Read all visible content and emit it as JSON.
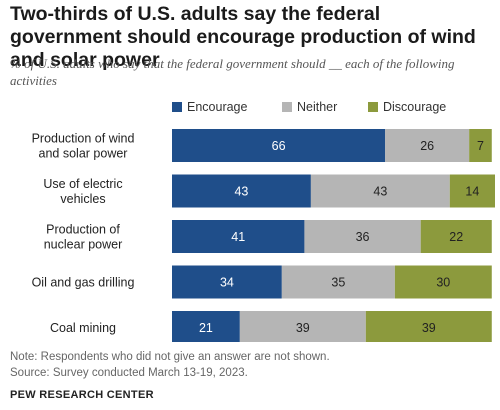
{
  "title": "Two-thirds of U.S. adults say the federal government should encourage production of wind and solar power",
  "subtitle": "% of U.S. adults who say that the federal government should __ each of the following activities",
  "note": "Note: Respondents who did not give an answer are not shown.",
  "source": "Source: Survey conducted March 13-19, 2023.",
  "brand": "PEW RESEARCH CENTER",
  "chart_data": {
    "type": "bar",
    "orientation": "horizontal",
    "stacked": true,
    "categories": [
      [
        "Production of wind",
        "and solar power"
      ],
      [
        "Use of electric",
        "vehicles"
      ],
      [
        "Production of",
        "nuclear power"
      ],
      [
        "Oil and gas drilling"
      ],
      [
        "Coal mining"
      ]
    ],
    "series": [
      {
        "name": "Encourage",
        "color": "#1f4e8a",
        "values": [
          66,
          43,
          41,
          34,
          21
        ]
      },
      {
        "name": "Neither",
        "color": "#b5b5b5",
        "values": [
          26,
          43,
          36,
          35,
          39
        ]
      },
      {
        "name": "Discourage",
        "color": "#8c9a3d",
        "values": [
          7,
          14,
          22,
          30,
          39
        ]
      }
    ],
    "xlim": [
      0,
      100
    ],
    "grid": false,
    "legend": "top"
  }
}
